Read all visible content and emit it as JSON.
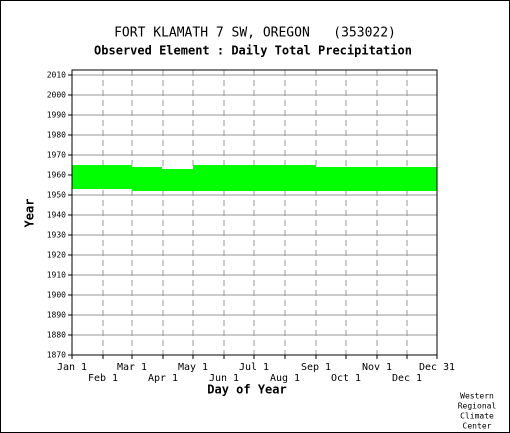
{
  "chart_data": {
    "type": "range-bar",
    "title": "FORT KLAMATH 7 SW, OREGON   (353022)",
    "subtitle": "Observed Element : Daily Total Precipitation",
    "xlabel": "Day of Year",
    "ylabel": "Year",
    "credit": [
      "Western",
      "Regional",
      "Climate",
      "Center"
    ],
    "color": "#00ff00",
    "xlim": [
      1,
      366
    ],
    "ylim": [
      1870,
      2012.5
    ],
    "xticks": [
      {
        "value": 1,
        "label": "Jan 1"
      },
      {
        "value": 32,
        "label": "Feb 1"
      },
      {
        "value": 61,
        "label": "Mar 1"
      },
      {
        "value": 92,
        "label": "Apr 1"
      },
      {
        "value": 122,
        "label": "May 1"
      },
      {
        "value": 153,
        "label": "Jun 1"
      },
      {
        "value": 183,
        "label": "Jul 1"
      },
      {
        "value": 214,
        "label": "Aug 1"
      },
      {
        "value": 245,
        "label": "Sep 1"
      },
      {
        "value": 275,
        "label": "Oct 1"
      },
      {
        "value": 306,
        "label": "Nov 1"
      },
      {
        "value": 336,
        "label": "Dec 1"
      },
      {
        "value": 366,
        "label": "Dec 31"
      }
    ],
    "yticks": [
      1870,
      1880,
      1890,
      1900,
      1910,
      1920,
      1930,
      1940,
      1950,
      1960,
      1970,
      1980,
      1990,
      2000,
      2010
    ],
    "grid": true,
    "bars": [
      {
        "x0": 1,
        "x1": 61,
        "low": 1953,
        "high": 1965
      },
      {
        "x0": 61,
        "x1": 91,
        "low": 1952,
        "high": 1964
      },
      {
        "x0": 91,
        "x1": 122,
        "low": 1952,
        "high": 1963
      },
      {
        "x0": 122,
        "x1": 245,
        "low": 1952,
        "high": 1965
      },
      {
        "x0": 245,
        "x1": 366,
        "low": 1952,
        "high": 1964
      }
    ]
  }
}
